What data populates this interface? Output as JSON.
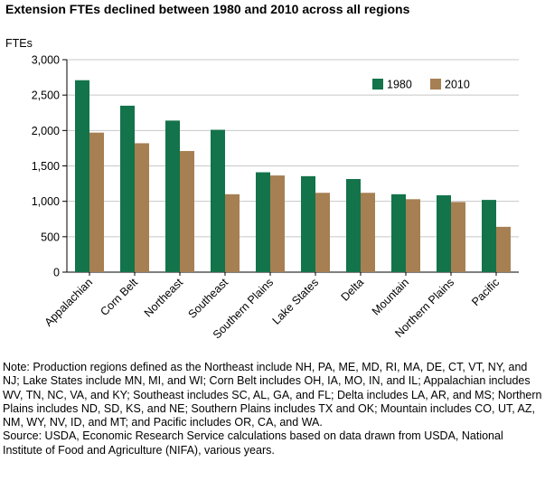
{
  "chart_data": {
    "type": "bar",
    "title": "Extension FTEs declined between 1980 and 2010 across all regions",
    "ylabel": "FTEs",
    "xlabel": "",
    "ylim": [
      0,
      3000
    ],
    "yticks": [
      0,
      500,
      1000,
      1500,
      2000,
      2500,
      3000
    ],
    "ytick_labels": [
      "0",
      "500",
      "1,000",
      "1,500",
      "2,000",
      "2,500",
      "3,000"
    ],
    "grid": true,
    "legend_position": "top-right",
    "categories": [
      "Appalachian",
      "Corn Belt",
      "Northeast",
      "Southeast",
      "Southern Plains",
      "Lake States",
      "Delta",
      "Mountain",
      "Northern Plains",
      "Pacific"
    ],
    "series": [
      {
        "name": "1980",
        "color": "#13734a",
        "values": [
          2710,
          2350,
          2140,
          2010,
          1410,
          1355,
          1315,
          1100,
          1085,
          1020
        ]
      },
      {
        "name": "2010",
        "color": "#a67f52",
        "values": [
          1970,
          1820,
          1710,
          1100,
          1365,
          1120,
          1120,
          1030,
          990,
          640
        ]
      }
    ]
  },
  "notes": {
    "note": "Note: Production regions defined as the Northeast include NH, PA, ME, MD, RI, MA, DE, CT, VT, NY, and NJ; Lake States include MN, MI, and WI; Corn Belt includes OH, IA, MO, IN, and IL; Appalachian includes WV, TN, NC, VA, and KY; Southeast includes SC, AL, GA, and FL; Delta includes LA, AR, and MS; Northern Plains includes ND, SD, KS, and NE; Southern Plains includes TX and OK; Mountain includes CO, UT, AZ, NM, WY, NV, ID, and MT; and Pacific includes OR, CA, and WA.",
    "source": "Source: USDA, Economic Research Service calculations based on data drawn from USDA, National Institute of Food and Agriculture (NIFA), various years."
  }
}
